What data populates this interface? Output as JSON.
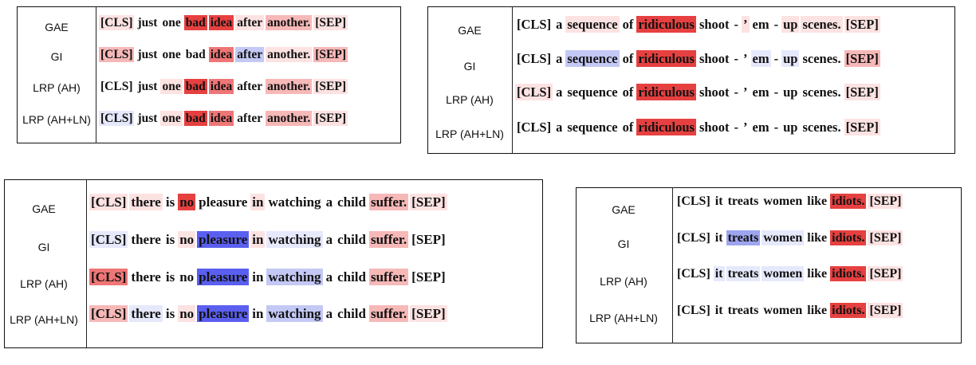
{
  "colors": {
    "0": "transparent",
    "r1": "#fde2e2",
    "r2": "#f7b8b8",
    "r3": "#ef7676",
    "r4": "#e64040",
    "b1": "#e6e8fb",
    "b2": "#c4c8f4",
    "b3": "#9ea5ee",
    "b4": "#5b5ff0"
  },
  "panels": [
    {
      "methods": [
        "GAE",
        "GI",
        "LRP (AH)",
        "LRP (AH+LN)"
      ],
      "tokens": [
        "[CLS]",
        "just",
        "one",
        "bad",
        "idea",
        "after",
        "another.",
        "[SEP]"
      ],
      "rows": [
        [
          "r1",
          "0",
          "0",
          "r4",
          "r4",
          "r1",
          "r2",
          "r1"
        ],
        [
          "r2",
          "0",
          "0",
          "0",
          "r3",
          "b2",
          "r1",
          "r2"
        ],
        [
          "0",
          "0",
          "r1",
          "r4",
          "r3",
          "0",
          "r2",
          "r1"
        ],
        [
          "b1",
          "0",
          "r1",
          "r4",
          "r3",
          "0",
          "r2",
          "r1"
        ]
      ]
    },
    {
      "methods": [
        "GAE",
        "GI",
        "LRP (AH)",
        "LRP (AH+LN)"
      ],
      "tokens": [
        "[CLS]",
        "a",
        "sequence",
        "of",
        "ridiculous",
        "shoot",
        "-",
        "’",
        "em",
        "-",
        "up",
        "scenes.",
        "[SEP]"
      ],
      "rows": [
        [
          "0",
          "0",
          "r1",
          "0",
          "r4",
          "0",
          "0",
          "r1",
          "0",
          "0",
          "r1",
          "r1",
          "r1"
        ],
        [
          "0",
          "0",
          "b2",
          "0",
          "r4",
          "0",
          "0",
          "0",
          "b1",
          "0",
          "b1",
          "0",
          "r2"
        ],
        [
          "r1",
          "0",
          "0",
          "0",
          "r4",
          "0",
          "0",
          "0",
          "0",
          "0",
          "0",
          "0",
          "r1"
        ],
        [
          "0",
          "0",
          "0",
          "0",
          "r4",
          "0",
          "0",
          "0",
          "0",
          "0",
          "0",
          "0",
          "r1"
        ]
      ]
    },
    {
      "methods": [
        "GAE",
        "GI",
        "LRP (AH)",
        "LRP (AH+LN)"
      ],
      "tokens": [
        "[CLS]",
        "there",
        "is",
        "no",
        "pleasure",
        "in",
        "watching",
        "a",
        "child",
        "suffer.",
        "[SEP]"
      ],
      "rows": [
        [
          "r1",
          "r1",
          "0",
          "r4",
          "0",
          "r1",
          "0",
          "0",
          "0",
          "r2",
          "r1"
        ],
        [
          "b1",
          "0",
          "0",
          "r1",
          "b4",
          "r1",
          "b1",
          "0",
          "0",
          "r2",
          "0"
        ],
        [
          "r3",
          "0",
          "0",
          "0",
          "b4",
          "0",
          "b2",
          "0",
          "0",
          "r2",
          "0"
        ],
        [
          "r2",
          "b1",
          "0",
          "r1",
          "b4",
          "0",
          "b2",
          "0",
          "0",
          "r2",
          "r1"
        ]
      ]
    },
    {
      "methods": [
        "GAE",
        "GI",
        "LRP (AH)",
        "LRP (AH+LN)"
      ],
      "tokens": [
        "[CLS]",
        "it",
        "treats",
        "women",
        "like",
        "idiots.",
        "[SEP]"
      ],
      "rows": [
        [
          "0",
          "0",
          "0",
          "0",
          "0",
          "r4",
          "r1"
        ],
        [
          "0",
          "0",
          "b3",
          "b1",
          "0",
          "r4",
          "r1"
        ],
        [
          "0",
          "b1",
          "b1",
          "b1",
          "0",
          "r4",
          "r1"
        ],
        [
          "0",
          "0",
          "0",
          "0",
          "0",
          "r4",
          "r1"
        ]
      ]
    }
  ]
}
